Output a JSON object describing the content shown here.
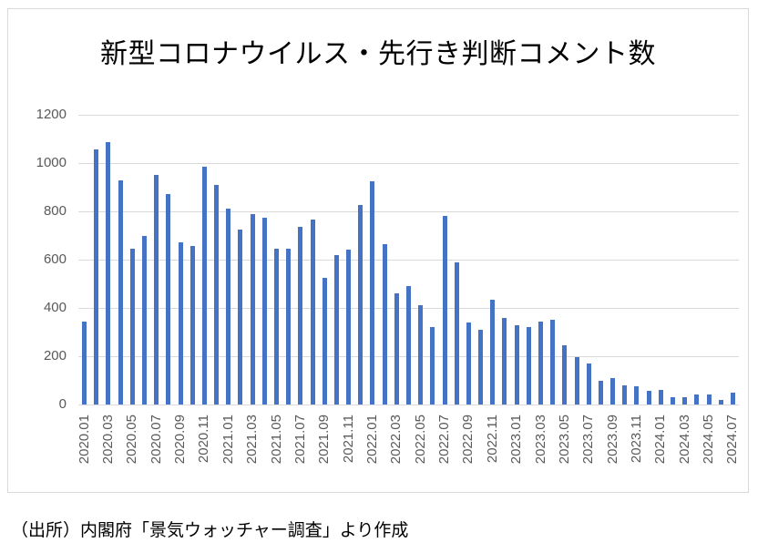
{
  "chart": {
    "source_note": "（出所）内閣府「景気ウォッチャー調査」より作成",
    "colors": {
      "bar": "#4472c4",
      "gridline": "#d9d9d9",
      "axis_text": "#595959",
      "title_text": "#000000",
      "frame_border": "#d9d9d9",
      "background": "#ffffff"
    }
  },
  "chart_data": {
    "type": "bar",
    "title": "新型コロナウイルス・先行き判断コメント数",
    "xlabel": "",
    "ylabel": "",
    "ylim": [
      0,
      1200
    ],
    "grid": true,
    "legend": false,
    "y_ticks": [
      0,
      200,
      400,
      600,
      800,
      1000,
      1200
    ],
    "x_tick_every": 2,
    "categories": [
      "2020.01",
      "2020.02",
      "2020.03",
      "2020.04",
      "2020.05",
      "2020.06",
      "2020.07",
      "2020.08",
      "2020.09",
      "2020.10",
      "2020.11",
      "2020.12",
      "2021.01",
      "2021.02",
      "2021.03",
      "2021.04",
      "2021.05",
      "2021.06",
      "2021.07",
      "2021.08",
      "2021.09",
      "2021.10",
      "2021.11",
      "2021.12",
      "2022.01",
      "2022.02",
      "2022.03",
      "2022.04",
      "2022.05",
      "2022.06",
      "2022.07",
      "2022.08",
      "2022.09",
      "2022.10",
      "2022.11",
      "2022.12",
      "2023.01",
      "2023.02",
      "2023.03",
      "2023.04",
      "2023.05",
      "2023.06",
      "2023.07",
      "2023.08",
      "2023.09",
      "2023.10",
      "2023.11",
      "2023.12",
      "2024.01",
      "2024.02",
      "2024.03",
      "2024.04",
      "2024.05",
      "2024.06",
      "2024.07"
    ],
    "values": [
      345,
      1055,
      1085,
      930,
      645,
      700,
      950,
      870,
      670,
      655,
      985,
      910,
      810,
      725,
      790,
      775,
      645,
      645,
      735,
      765,
      525,
      620,
      640,
      825,
      925,
      665,
      460,
      490,
      410,
      320,
      780,
      590,
      340,
      310,
      435,
      360,
      330,
      320,
      345,
      350,
      245,
      195,
      170,
      100,
      110,
      80,
      75,
      55,
      60,
      30,
      30,
      40,
      40,
      20,
      50
    ]
  }
}
